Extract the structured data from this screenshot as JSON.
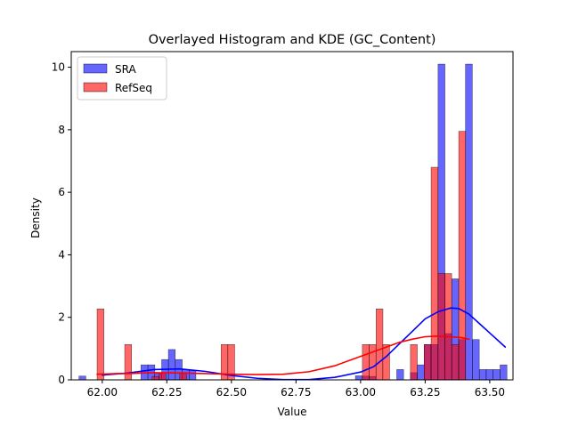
{
  "chart_data": {
    "type": "histogram",
    "title": "Overlayed Histogram and KDE (GC_Content)",
    "xlabel": "Value",
    "ylabel": "Density",
    "xlim": [
      61.88,
      63.59
    ],
    "ylim": [
      0,
      10.5
    ],
    "xticks": [
      62.0,
      62.25,
      62.5,
      62.75,
      63.0,
      63.25,
      63.5
    ],
    "xtick_labels": [
      "62.00",
      "62.25",
      "62.50",
      "62.75",
      "63.00",
      "63.25",
      "63.50"
    ],
    "yticks": [
      0,
      2,
      4,
      6,
      8,
      10
    ],
    "ytick_labels": [
      "0",
      "2",
      "4",
      "6",
      "8",
      "10"
    ],
    "grid": false,
    "legend_position": "top-left",
    "series": [
      {
        "name": "SRA",
        "color": "#0000ff",
        "bin_width": 0.0265,
        "bins": [
          [
            61.91,
            0.12
          ],
          [
            62.15,
            0.48
          ],
          [
            62.177,
            0.48
          ],
          [
            62.203,
            0.2
          ],
          [
            62.23,
            0.65
          ],
          [
            62.256,
            0.97
          ],
          [
            62.283,
            0.65
          ],
          [
            62.31,
            0.33
          ],
          [
            62.336,
            0.31
          ],
          [
            62.98,
            0.13
          ],
          [
            63.007,
            0.12
          ],
          [
            63.033,
            0.11
          ],
          [
            63.14,
            0.33
          ],
          [
            63.193,
            0.23
          ],
          [
            63.22,
            0.48
          ],
          [
            63.246,
            1.13
          ],
          [
            63.273,
            1.13
          ],
          [
            63.3,
            10.1
          ],
          [
            63.326,
            1.48
          ],
          [
            63.353,
            3.23
          ],
          [
            63.38,
            1.29
          ],
          [
            63.406,
            10.1
          ],
          [
            63.433,
            1.29
          ],
          [
            63.46,
            0.33
          ],
          [
            63.486,
            0.33
          ],
          [
            63.513,
            0.33
          ],
          [
            63.54,
            0.48
          ]
        ],
        "kde_x": [
          62.0,
          62.1,
          62.2,
          62.3,
          62.4,
          62.5,
          62.6,
          62.7,
          62.8,
          62.9,
          63.0,
          63.05,
          63.1,
          63.15,
          63.2,
          63.25,
          63.3,
          63.35,
          63.38,
          63.42,
          63.46,
          63.5,
          63.56
        ],
        "kde_y": [
          0.15,
          0.22,
          0.33,
          0.35,
          0.27,
          0.14,
          0.05,
          0.01,
          0.01,
          0.08,
          0.25,
          0.42,
          0.75,
          1.15,
          1.55,
          1.95,
          2.18,
          2.3,
          2.28,
          2.1,
          1.8,
          1.5,
          1.05
        ]
      },
      {
        "name": "RefSeq",
        "color": "#ff0000",
        "bin_width": 0.0265,
        "bins": [
          [
            61.98,
            2.27
          ],
          [
            62.087,
            1.13
          ],
          [
            62.193,
            0.11
          ],
          [
            62.22,
            0.23
          ],
          [
            62.3,
            0.23
          ],
          [
            62.46,
            1.13
          ],
          [
            62.486,
            1.13
          ],
          [
            63.007,
            1.13
          ],
          [
            63.033,
            1.13
          ],
          [
            63.06,
            2.27
          ],
          [
            63.086,
            1.13
          ],
          [
            63.193,
            1.13
          ],
          [
            63.246,
            1.13
          ],
          [
            63.273,
            6.8
          ],
          [
            63.3,
            3.4
          ],
          [
            63.326,
            3.4
          ],
          [
            63.353,
            1.13
          ],
          [
            63.38,
            7.95
          ]
        ],
        "kde_x": [
          61.98,
          62.05,
          62.1,
          62.2,
          62.3,
          62.4,
          62.5,
          62.6,
          62.7,
          62.8,
          62.9,
          63.0,
          63.1,
          63.15,
          63.2,
          63.25,
          63.3,
          63.35,
          63.39,
          63.42
        ],
        "kde_y": [
          0.18,
          0.2,
          0.2,
          0.23,
          0.22,
          0.2,
          0.18,
          0.17,
          0.18,
          0.26,
          0.45,
          0.75,
          1.05,
          1.2,
          1.3,
          1.38,
          1.4,
          1.38,
          1.35,
          1.3
        ]
      }
    ]
  }
}
